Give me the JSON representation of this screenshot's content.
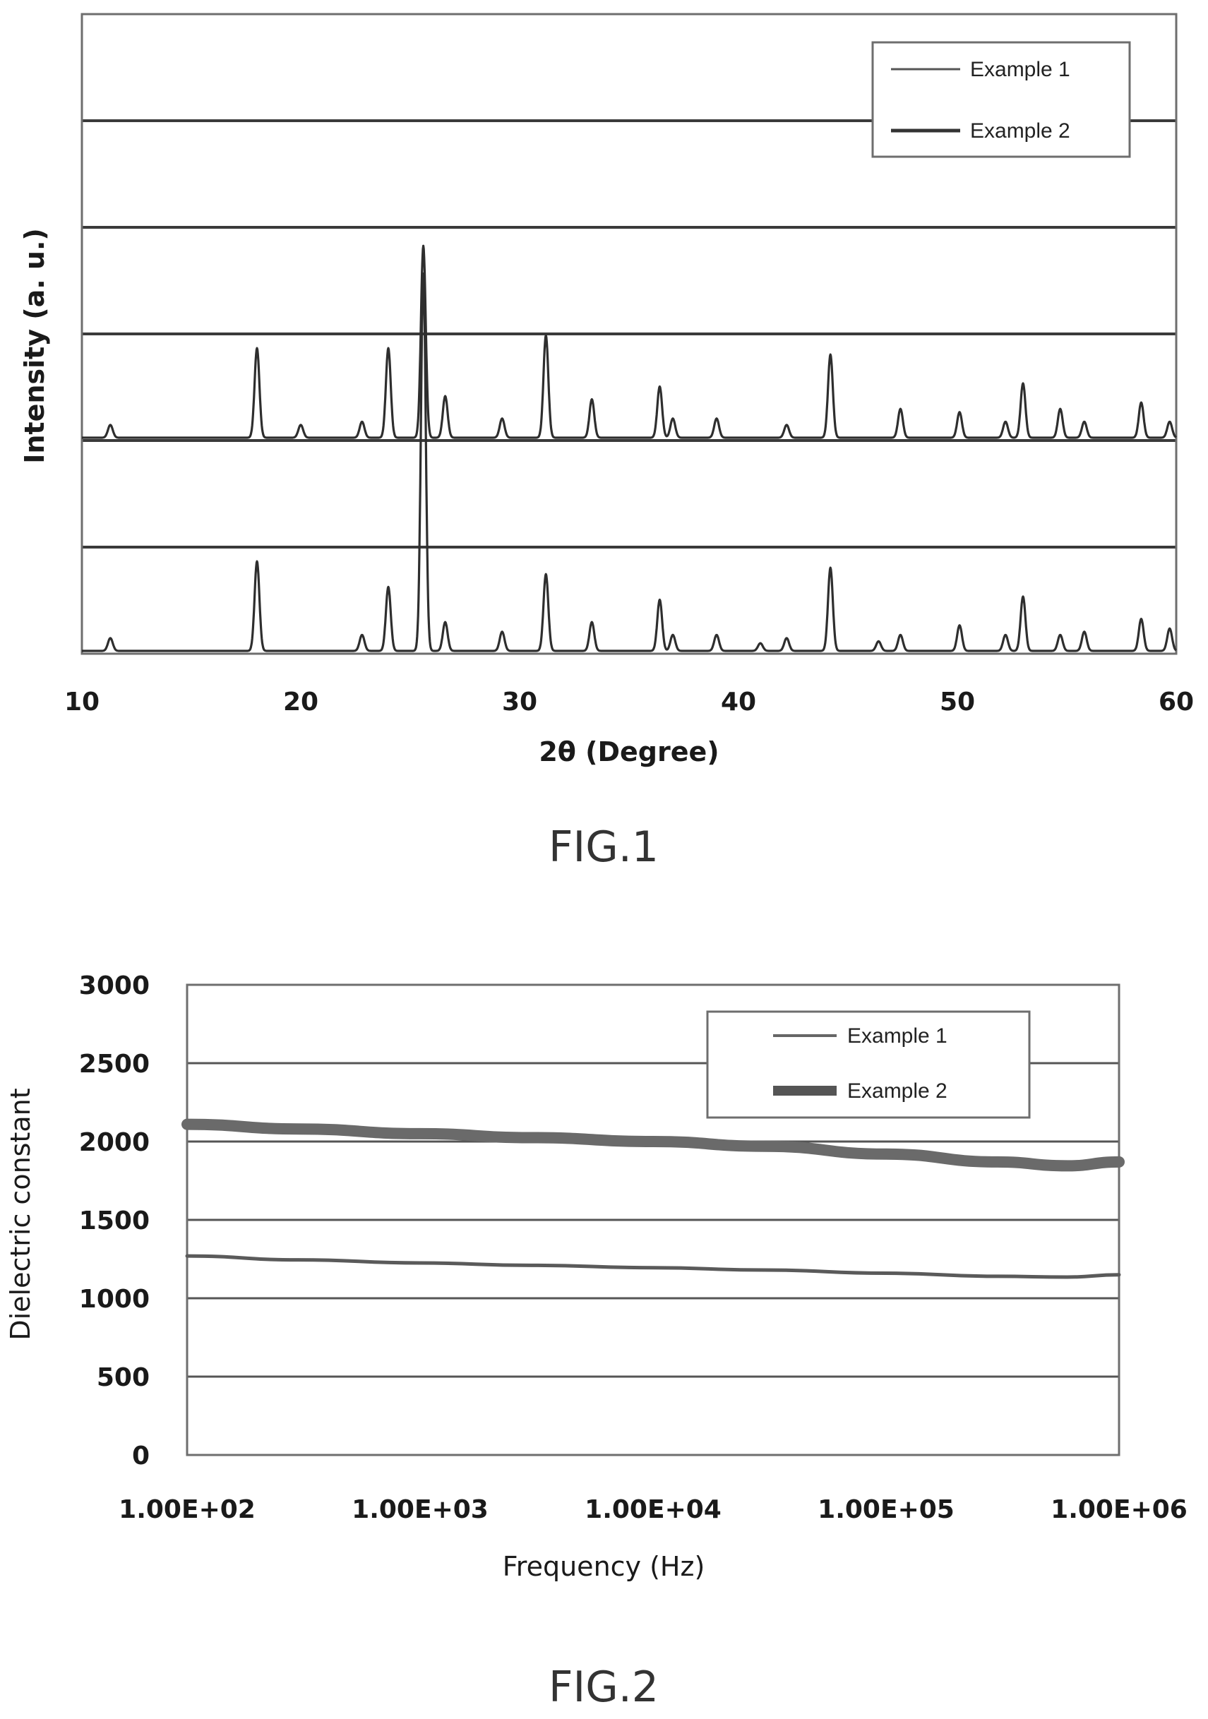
{
  "chart_data": [
    {
      "type": "line",
      "figure_label": "FIG.1",
      "xlabel": "2θ (Degree)",
      "ylabel": "Intensity (a. u.)",
      "xlim": [
        10,
        60
      ],
      "xticks": [
        "10",
        "20",
        "30",
        "40",
        "50",
        "60"
      ],
      "y_ticks_labeled": false,
      "grid": true,
      "legend_position": "top-right",
      "series": [
        {
          "name": "Example 1",
          "peaks": [
            {
              "x": 11.3,
              "h": 0.02
            },
            {
              "x": 18.0,
              "h": 0.14
            },
            {
              "x": 20.0,
              "h": 0.02
            },
            {
              "x": 22.8,
              "h": 0.025
            },
            {
              "x": 24.0,
              "h": 0.14
            },
            {
              "x": 25.6,
              "h": 0.3
            },
            {
              "x": 26.6,
              "h": 0.065
            },
            {
              "x": 29.2,
              "h": 0.03
            },
            {
              "x": 31.2,
              "h": 0.16
            },
            {
              "x": 33.3,
              "h": 0.06
            },
            {
              "x": 36.4,
              "h": 0.08
            },
            {
              "x": 37.0,
              "h": 0.03
            },
            {
              "x": 39.0,
              "h": 0.03
            },
            {
              "x": 42.2,
              "h": 0.02
            },
            {
              "x": 44.2,
              "h": 0.13
            },
            {
              "x": 47.4,
              "h": 0.045
            },
            {
              "x": 50.1,
              "h": 0.04
            },
            {
              "x": 52.2,
              "h": 0.025
            },
            {
              "x": 53.0,
              "h": 0.085
            },
            {
              "x": 54.7,
              "h": 0.045
            },
            {
              "x": 55.8,
              "h": 0.025
            },
            {
              "x": 58.4,
              "h": 0.055
            },
            {
              "x": 59.7,
              "h": 0.025
            }
          ]
        },
        {
          "name": "Example 2",
          "peaks": [
            {
              "x": 11.3,
              "h": 0.02
            },
            {
              "x": 18.0,
              "h": 0.14
            },
            {
              "x": 22.8,
              "h": 0.025
            },
            {
              "x": 24.0,
              "h": 0.1
            },
            {
              "x": 25.6,
              "h": 0.59
            },
            {
              "x": 26.6,
              "h": 0.045
            },
            {
              "x": 29.2,
              "h": 0.03
            },
            {
              "x": 31.2,
              "h": 0.12
            },
            {
              "x": 33.3,
              "h": 0.045
            },
            {
              "x": 36.4,
              "h": 0.08
            },
            {
              "x": 37.0,
              "h": 0.025
            },
            {
              "x": 39.0,
              "h": 0.025
            },
            {
              "x": 41.0,
              "h": 0.012
            },
            {
              "x": 42.2,
              "h": 0.02
            },
            {
              "x": 44.2,
              "h": 0.13
            },
            {
              "x": 46.4,
              "h": 0.015
            },
            {
              "x": 47.4,
              "h": 0.025
            },
            {
              "x": 50.1,
              "h": 0.04
            },
            {
              "x": 52.2,
              "h": 0.025
            },
            {
              "x": 53.0,
              "h": 0.085
            },
            {
              "x": 54.7,
              "h": 0.025
            },
            {
              "x": 55.8,
              "h": 0.03
            },
            {
              "x": 58.4,
              "h": 0.05
            },
            {
              "x": 59.7,
              "h": 0.035
            }
          ]
        }
      ]
    },
    {
      "type": "line",
      "figure_label": "FIG.2",
      "xlabel": "Frequency (Hz)",
      "ylabel": "Dielectric constant",
      "xscale": "log",
      "xlim": [
        100,
        1000000
      ],
      "ylim": [
        0,
        3000
      ],
      "xticks": [
        "1.00E+02",
        "1.00E+03",
        "1.00E+04",
        "1.00E+05",
        "1.00E+06"
      ],
      "yticks": [
        "0",
        "500",
        "1000",
        "1500",
        "2000",
        "2500",
        "3000"
      ],
      "grid": true,
      "legend_position": "top-right",
      "series": [
        {
          "name": "Example 1",
          "x": [
            100,
            300,
            1000,
            3000,
            10000,
            30000,
            100000,
            300000,
            600000,
            1000000
          ],
          "y": [
            1270,
            1245,
            1225,
            1210,
            1195,
            1180,
            1160,
            1140,
            1135,
            1150
          ]
        },
        {
          "name": "Example 2",
          "x": [
            100,
            300,
            1000,
            3000,
            10000,
            30000,
            100000,
            300000,
            600000,
            1000000
          ],
          "y": [
            2110,
            2080,
            2050,
            2025,
            2000,
            1970,
            1920,
            1870,
            1845,
            1870
          ]
        }
      ]
    }
  ]
}
